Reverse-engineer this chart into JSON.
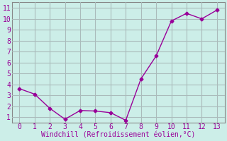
{
  "x": [
    0,
    1,
    2,
    3,
    4,
    5,
    6,
    7,
    8,
    9,
    10,
    11,
    12,
    13
  ],
  "y": [
    3.6,
    3.1,
    1.8,
    0.8,
    1.6,
    1.55,
    1.4,
    0.7,
    4.5,
    6.6,
    9.8,
    10.5,
    10.0,
    10.8
  ],
  "line_color": "#990099",
  "marker": "D",
  "marker_size": 2.5,
  "background_color": "#cceee8",
  "grid_color": "#aabbbb",
  "xlabel": "Windchill (Refroidissement éolien,°C)",
  "xlabel_color": "#990099",
  "tick_color": "#990099",
  "spine_color": "#888888",
  "ylim": [
    0.5,
    11.5
  ],
  "xlim": [
    -0.5,
    13.5
  ],
  "yticks": [
    1,
    2,
    3,
    4,
    5,
    6,
    7,
    8,
    9,
    10,
    11
  ],
  "xticks": [
    0,
    1,
    2,
    3,
    4,
    5,
    6,
    7,
    8,
    9,
    10,
    11,
    12,
    13
  ],
  "tick_fontsize": 7,
  "xlabel_fontsize": 7
}
